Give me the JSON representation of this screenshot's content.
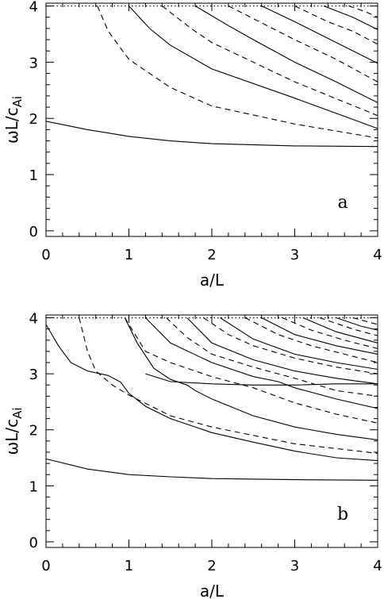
{
  "chart_data": [
    {
      "type": "line",
      "panel_label": "a",
      "xlabel": "a/L",
      "ylabel": "ωL/c_Ai",
      "xlim": [
        0,
        4
      ],
      "ylim": [
        -0.1,
        4.05
      ],
      "x_ticks": [
        "0",
        "1",
        "2",
        "3",
        "4"
      ],
      "y_ticks": [
        "0",
        "1",
        "2",
        "3",
        "4"
      ],
      "grid": false,
      "reference_line": {
        "y": 4.0,
        "style": "dotted"
      },
      "series": [
        {
          "style": "solid",
          "points": [
            [
              0,
              1.95
            ],
            [
              0.5,
              1.8
            ],
            [
              1,
              1.68
            ],
            [
              1.5,
              1.6
            ],
            [
              2,
              1.55
            ],
            [
              3,
              1.51
            ],
            [
              4,
              1.5
            ]
          ]
        },
        {
          "style": "dashed",
          "points": [
            [
              0.62,
              4.0
            ],
            [
              0.75,
              3.55
            ],
            [
              1,
              3.05
            ],
            [
              1.5,
              2.55
            ],
            [
              2,
              2.22
            ],
            [
              3,
              1.9
            ],
            [
              4,
              1.65
            ]
          ]
        },
        {
          "style": "solid",
          "points": [
            [
              1.0,
              4.0
            ],
            [
              1.25,
              3.6
            ],
            [
              1.5,
              3.3
            ],
            [
              2,
              2.88
            ],
            [
              3,
              2.36
            ],
            [
              4,
              1.82
            ]
          ]
        },
        {
          "style": "dashed",
          "points": [
            [
              1.4,
              4.0
            ],
            [
              1.75,
              3.6
            ],
            [
              2,
              3.35
            ],
            [
              2.5,
              3.0
            ],
            [
              3,
              2.65
            ],
            [
              4,
              2.05
            ]
          ]
        },
        {
          "style": "solid",
          "points": [
            [
              1.8,
              4.0
            ],
            [
              2.2,
              3.65
            ],
            [
              2.5,
              3.4
            ],
            [
              3,
              3.0
            ],
            [
              3.5,
              2.65
            ],
            [
              4,
              2.28
            ]
          ]
        },
        {
          "style": "dashed",
          "points": [
            [
              2.2,
              4.0
            ],
            [
              2.6,
              3.7
            ],
            [
              3,
              3.4
            ],
            [
              3.5,
              3.05
            ],
            [
              4,
              2.65
            ]
          ]
        },
        {
          "style": "solid",
          "points": [
            [
              2.6,
              4.0
            ],
            [
              3,
              3.72
            ],
            [
              3.5,
              3.35
            ],
            [
              4,
              2.98
            ]
          ]
        },
        {
          "style": "dashed",
          "points": [
            [
              3.0,
              4.0
            ],
            [
              3.4,
              3.72
            ],
            [
              3.7,
              3.55
            ],
            [
              4,
              3.32
            ]
          ]
        },
        {
          "style": "solid",
          "points": [
            [
              3.35,
              4.0
            ],
            [
              3.7,
              3.8
            ],
            [
              4,
              3.58
            ]
          ]
        },
        {
          "style": "dashed",
          "points": [
            [
              3.65,
              4.0
            ],
            [
              3.85,
              3.9
            ],
            [
              4,
              3.8
            ]
          ]
        }
      ]
    },
    {
      "type": "line",
      "panel_label": "b",
      "xlabel": "a/L",
      "ylabel": "ωL/c_Ai",
      "xlim": [
        0,
        4
      ],
      "ylim": [
        -0.1,
        4.05
      ],
      "x_ticks": [
        "0",
        "1",
        "2",
        "3",
        "4"
      ],
      "y_ticks": [
        "0",
        "1",
        "2",
        "3",
        "4"
      ],
      "grid": false,
      "reference_line": {
        "y": 4.0,
        "style": "dotted"
      },
      "series": [
        {
          "style": "solid",
          "points": [
            [
              0,
              1.48
            ],
            [
              0.5,
              1.3
            ],
            [
              1,
              1.2
            ],
            [
              1.5,
              1.16
            ],
            [
              2,
              1.13
            ],
            [
              3,
              1.11
            ],
            [
              4,
              1.1
            ]
          ]
        },
        {
          "style": "solid",
          "points": [
            [
              0,
              3.88
            ],
            [
              0.15,
              3.5
            ],
            [
              0.3,
              3.2
            ],
            [
              0.5,
              3.05
            ],
            [
              0.75,
              2.97
            ],
            [
              0.9,
              2.85
            ],
            [
              1.0,
              2.65
            ],
            [
              1.2,
              2.42
            ],
            [
              1.5,
              2.2
            ],
            [
              2,
              1.95
            ],
            [
              2.5,
              1.78
            ],
            [
              3,
              1.62
            ],
            [
              3.5,
              1.5
            ],
            [
              4,
              1.45
            ]
          ]
        },
        {
          "style": "dashed",
          "points": [
            [
              0.4,
              4.0
            ],
            [
              0.5,
              3.4
            ],
            [
              0.6,
              3.05
            ],
            [
              0.8,
              2.8
            ],
            [
              1,
              2.62
            ],
            [
              1.5,
              2.25
            ],
            [
              2,
              2.05
            ],
            [
              3,
              1.75
            ],
            [
              4,
              1.58
            ]
          ]
        },
        {
          "style": "solid",
          "points": [
            [
              0.95,
              4.0
            ],
            [
              1.1,
              3.55
            ],
            [
              1.3,
              3.1
            ],
            [
              1.5,
              2.9
            ],
            [
              1.7,
              2.8
            ],
            [
              1.8,
              2.7
            ],
            [
              2,
              2.55
            ],
            [
              2.5,
              2.25
            ],
            [
              3,
              2.05
            ],
            [
              3.5,
              1.92
            ],
            [
              4,
              1.82
            ]
          ]
        },
        {
          "style": "dashed",
          "points": [
            [
              0.95,
              4.0
            ],
            [
              1.2,
              3.4
            ],
            [
              1.5,
              3.2
            ],
            [
              2,
              2.95
            ],
            [
              2.5,
              2.75
            ],
            [
              3,
              2.48
            ],
            [
              3.5,
              2.28
            ],
            [
              4,
              2.12
            ]
          ]
        },
        {
          "style": "solid",
          "points": [
            [
              1.2,
              3.0
            ],
            [
              1.5,
              2.86
            ],
            [
              2,
              2.82
            ],
            [
              2.5,
              2.8
            ],
            [
              3,
              2.8
            ],
            [
              3.5,
              2.82
            ],
            [
              4,
              2.82
            ]
          ]
        },
        {
          "style": "solid",
          "points": [
            [
              1.2,
              4.0
            ],
            [
              1.5,
              3.55
            ],
            [
              2,
              3.2
            ],
            [
              2.5,
              2.95
            ],
            [
              2.8,
              2.86
            ],
            [
              3,
              2.75
            ],
            [
              3.5,
              2.55
            ],
            [
              4,
              2.38
            ]
          ]
        },
        {
          "style": "dashed",
          "points": [
            [
              1.45,
              4.0
            ],
            [
              1.7,
              3.65
            ],
            [
              2,
              3.35
            ],
            [
              2.5,
              3.12
            ],
            [
              3,
              2.92
            ],
            [
              3.5,
              2.7
            ],
            [
              4,
              2.6
            ]
          ]
        },
        {
          "style": "solid",
          "points": [
            [
              1.7,
              4.0
            ],
            [
              2,
              3.55
            ],
            [
              2.5,
              3.25
            ],
            [
              3,
              3.05
            ],
            [
              3.5,
              2.92
            ],
            [
              4,
              2.82
            ]
          ]
        },
        {
          "style": "dashed",
          "points": [
            [
              1.9,
              4.0
            ],
            [
              2.2,
              3.7
            ],
            [
              2.5,
              3.5
            ],
            [
              3,
              3.28
            ],
            [
              3.5,
              3.12
            ],
            [
              4,
              3.0
            ]
          ]
        },
        {
          "style": "solid",
          "points": [
            [
              2.1,
              4.0
            ],
            [
              2.5,
              3.62
            ],
            [
              3,
              3.35
            ],
            [
              3.5,
              3.2
            ],
            [
              4,
              3.08
            ]
          ]
        },
        {
          "style": "dashed",
          "points": [
            [
              2.4,
              4.0
            ],
            [
              2.8,
              3.7
            ],
            [
              3.2,
              3.5
            ],
            [
              3.6,
              3.35
            ],
            [
              4,
              3.2
            ]
          ]
        },
        {
          "style": "solid",
          "points": [
            [
              2.6,
              4.0
            ],
            [
              3,
              3.7
            ],
            [
              3.5,
              3.5
            ],
            [
              4,
              3.35
            ]
          ]
        },
        {
          "style": "dashed",
          "points": [
            [
              2.85,
              4.0
            ],
            [
              3.2,
              3.78
            ],
            [
              3.6,
              3.6
            ],
            [
              4,
              3.45
            ]
          ]
        },
        {
          "style": "solid",
          "points": [
            [
              3.1,
              4.0
            ],
            [
              3.5,
              3.75
            ],
            [
              4,
              3.55
            ]
          ]
        },
        {
          "style": "dashed",
          "points": [
            [
              3.3,
              4.0
            ],
            [
              3.7,
              3.8
            ],
            [
              4,
              3.68
            ]
          ]
        },
        {
          "style": "solid",
          "points": [
            [
              3.5,
              4.0
            ],
            [
              3.8,
              3.85
            ],
            [
              4,
              3.78
            ]
          ]
        },
        {
          "style": "dashed",
          "points": [
            [
              3.7,
              4.0
            ],
            [
              3.9,
              3.92
            ],
            [
              4,
              3.88
            ]
          ]
        }
      ]
    }
  ]
}
